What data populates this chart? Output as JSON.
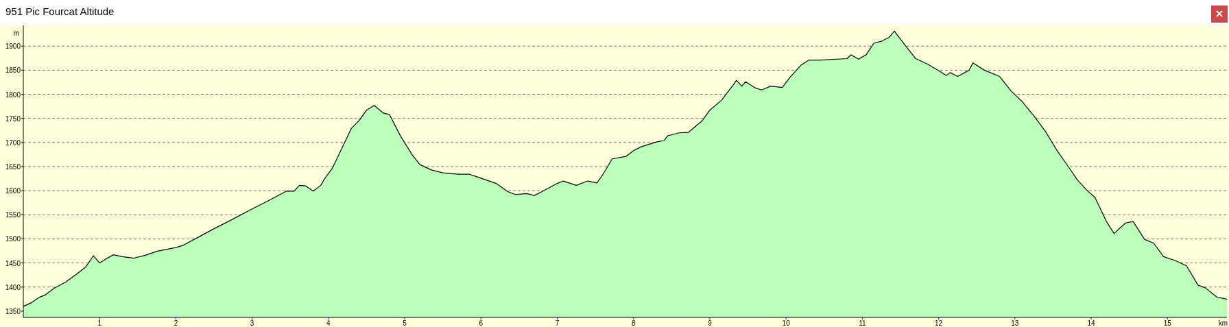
{
  "chart_data": {
    "type": "area",
    "title": "951 Pic Fourcat Altitude",
    "xlabel": "km",
    "ylabel": "m",
    "grid": "y",
    "xlim": [
      0,
      15.78
    ],
    "ylim": [
      1337,
      1943
    ],
    "xticks": [
      1,
      2,
      3,
      4,
      5,
      6,
      7,
      8,
      9,
      10,
      11,
      12,
      13,
      14,
      15
    ],
    "yticks": [
      1350,
      1400,
      1450,
      1500,
      1550,
      1600,
      1650,
      1700,
      1750,
      1800,
      1850,
      1900
    ],
    "series": [
      {
        "color": "#bbffbb",
        "x": [
          0,
          0.1,
          0.2,
          0.28,
          0.4,
          0.55,
          0.7,
          0.82,
          0.92,
          1.0,
          1.08,
          1.18,
          1.3,
          1.45,
          1.6,
          1.75,
          2.0,
          2.1,
          2.3,
          2.5,
          2.7,
          3.0,
          3.2,
          3.45,
          3.55,
          3.62,
          3.7,
          3.8,
          3.9,
          3.95,
          4.05,
          4.2,
          4.3,
          4.4,
          4.5,
          4.6,
          4.72,
          4.8,
          4.95,
          5.1,
          5.2,
          5.35,
          5.5,
          5.7,
          5.85,
          6.0,
          6.2,
          6.35,
          6.45,
          6.6,
          6.7,
          6.8,
          7.0,
          7.08,
          7.25,
          7.4,
          7.52,
          7.6,
          7.72,
          7.9,
          8.0,
          8.1,
          8.3,
          8.4,
          8.45,
          8.6,
          8.72,
          8.9,
          9.0,
          9.15,
          9.3,
          9.35,
          9.42,
          9.47,
          9.6,
          9.68,
          9.8,
          9.95,
          10.05,
          10.2,
          10.3,
          10.45,
          10.8,
          10.85,
          10.95,
          11.05,
          11.15,
          11.25,
          11.35,
          11.42,
          11.55,
          11.7,
          11.85,
          12.0,
          12.1,
          12.15,
          12.25,
          12.4,
          12.45,
          12.6,
          12.8,
          12.95,
          13.1,
          13.25,
          13.4,
          13.55,
          13.7,
          13.82,
          13.95,
          14.05,
          14.2,
          14.3,
          14.45,
          14.55,
          14.7,
          14.82,
          14.95,
          15.1,
          15.25,
          15.4,
          15.5,
          15.65,
          15.78
        ],
        "values": [
          1360,
          1367,
          1378,
          1383,
          1397,
          1410,
          1427,
          1442,
          1465,
          1450,
          1458,
          1467,
          1463,
          1460,
          1466,
          1474,
          1482,
          1487,
          1504,
          1521,
          1537,
          1562,
          1578,
          1599,
          1599,
          1611,
          1610,
          1599,
          1611,
          1625,
          1646,
          1696,
          1729,
          1745,
          1767,
          1777,
          1761,
          1758,
          1712,
          1674,
          1654,
          1643,
          1637,
          1634,
          1634,
          1626,
          1615,
          1598,
          1592,
          1594,
          1590,
          1598,
          1615,
          1620,
          1611,
          1620,
          1616,
          1634,
          1666,
          1671,
          1683,
          1691,
          1701,
          1704,
          1714,
          1720,
          1721,
          1745,
          1767,
          1787,
          1818,
          1829,
          1817,
          1826,
          1813,
          1809,
          1817,
          1814,
          1835,
          1861,
          1871,
          1871,
          1874,
          1882,
          1873,
          1882,
          1906,
          1910,
          1918,
          1931,
          1904,
          1874,
          1863,
          1849,
          1839,
          1845,
          1837,
          1850,
          1865,
          1850,
          1837,
          1807,
          1784,
          1755,
          1723,
          1684,
          1650,
          1622,
          1600,
          1586,
          1536,
          1511,
          1533,
          1536,
          1499,
          1491,
          1463,
          1455,
          1444,
          1404,
          1398,
          1379,
          1375
        ]
      }
    ]
  }
}
